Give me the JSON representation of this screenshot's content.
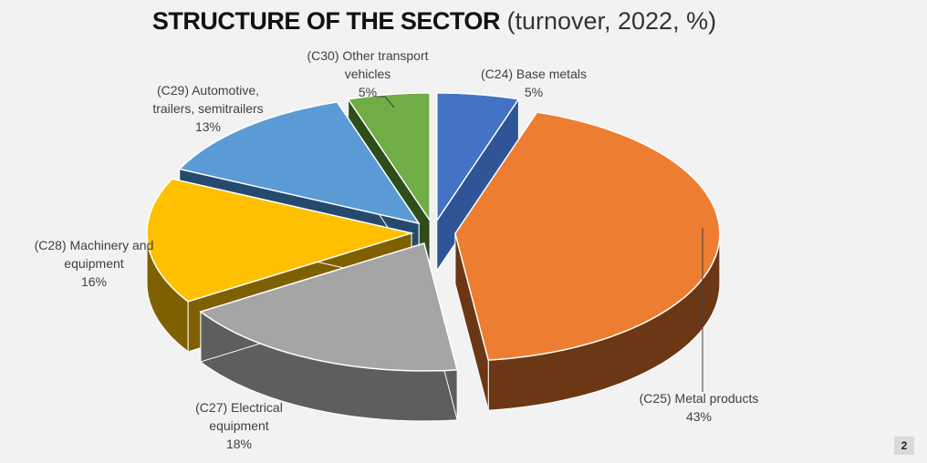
{
  "page": {
    "title_main": "STRUCTURE OF THE SECTOR",
    "title_sub": "(turnover, 2022, %)",
    "page_number": "2"
  },
  "chart_data": {
    "type": "pie",
    "style": "3d-exploded",
    "title": "STRUCTURE OF THE SECTOR (turnover, 2022, %)",
    "slices": [
      {
        "label_lines": [
          "(C24) Base metals"
        ],
        "value": 5,
        "value_label": "5%",
        "color": "#4472c4",
        "side_color": "#2f5597"
      },
      {
        "label_lines": [
          "(C25) Metal products"
        ],
        "value": 43,
        "value_label": "43%",
        "color": "#ed7d31",
        "side_color": "#6b3714"
      },
      {
        "label_lines": [
          "(C27) Electrical",
          "equipment"
        ],
        "value": 18,
        "value_label": "18%",
        "color": "#a5a5a5",
        "side_color": "#5e5e5e"
      },
      {
        "label_lines": [
          "(C28) Machinery and",
          "equipment"
        ],
        "value": 16,
        "value_label": "16%",
        "color": "#ffc000",
        "side_color": "#7f6000"
      },
      {
        "label_lines": [
          "(C29) Automotive,",
          "trailers, semitrailers"
        ],
        "value": 13,
        "value_label": "13%",
        "color": "#5b9bd5",
        "side_color": "#264a6e"
      },
      {
        "label_lines": [
          "(C30) Other transport",
          "vehicles"
        ],
        "value": 5,
        "value_label": "5%",
        "color": "#70ad47",
        "side_color": "#2e4d1a"
      }
    ]
  }
}
